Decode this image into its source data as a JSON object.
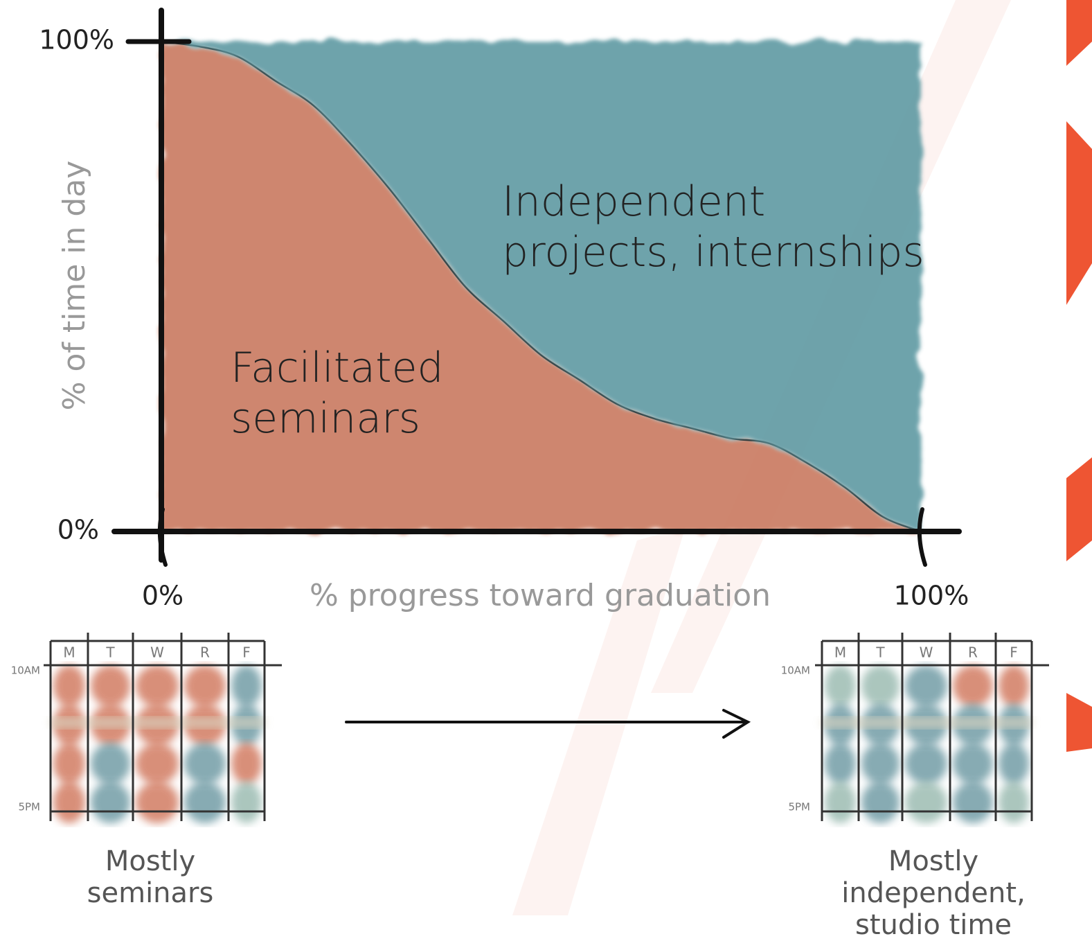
{
  "chart_data": {
    "type": "area",
    "x_label": "% progress toward graduation",
    "y_label": "% of time in day",
    "x": [
      0,
      5,
      10,
      15,
      20,
      25,
      30,
      35,
      40,
      45,
      50,
      55,
      60,
      65,
      70,
      75,
      80,
      85,
      90,
      95,
      100
    ],
    "series": [
      {
        "name": "Facilitated\nseminars",
        "color": "#c97a60",
        "values": [
          100,
          99,
          97,
          92,
          87,
          79,
          70,
          60,
          50,
          43,
          36,
          31,
          26,
          23,
          21,
          19,
          18,
          14,
          9,
          3,
          0
        ]
      },
      {
        "name": "Independent\nprojects, internships",
        "color": "#5f9aa3",
        "values": [
          0,
          1,
          3,
          8,
          13,
          21,
          30,
          40,
          50,
          57,
          64,
          69,
          74,
          77,
          79,
          81,
          82,
          86,
          91,
          97,
          100
        ]
      }
    ],
    "stacked": true,
    "xlim": [
      0,
      100
    ],
    "ylim": [
      0,
      100
    ],
    "xticks": [
      {
        "value": 0,
        "label": "0%"
      },
      {
        "value": 100,
        "label": "100%"
      }
    ],
    "yticks": [
      {
        "value": 0,
        "label": "0%"
      },
      {
        "value": 100,
        "label": "100%"
      }
    ]
  },
  "schedules": [
    {
      "days": [
        "M",
        "T",
        "W",
        "R",
        "F"
      ],
      "times": [
        "10AM",
        "5PM"
      ],
      "caption": "Mostly\nseminars"
    },
    {
      "days": [
        "M",
        "T",
        "W",
        "R",
        "F"
      ],
      "times": [
        "10AM",
        "5PM"
      ],
      "caption": "Mostly independent,\nstudio time"
    }
  ]
}
